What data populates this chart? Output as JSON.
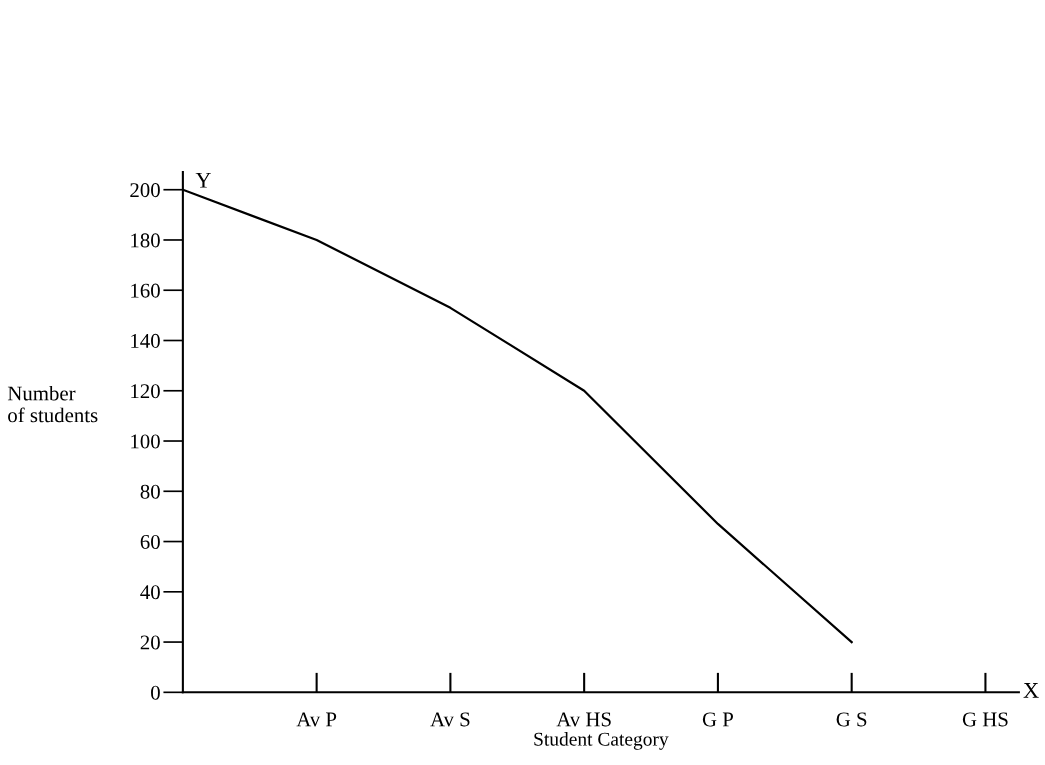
{
  "chart_data": {
    "type": "line",
    "categories": [
      null,
      "Av P",
      "Av S",
      "Av HS",
      "G P",
      "G S",
      "G HS"
    ],
    "series": [
      {
        "color": "#000000",
        "values": [
          200,
          180,
          153,
          120,
          67,
          20,
          null
        ]
      }
    ],
    "xlabel": "Student Category",
    "ylabel": "Number\nof students",
    "ylim": [
      0,
      207
    ],
    "yticks": [
      0,
      20,
      40,
      60,
      80,
      100,
      120,
      140,
      160,
      180,
      200
    ],
    "annotations": [
      "Y",
      "X"
    ],
    "grid": false,
    "legend": false,
    "marker": "none",
    "line_style": "solid"
  }
}
